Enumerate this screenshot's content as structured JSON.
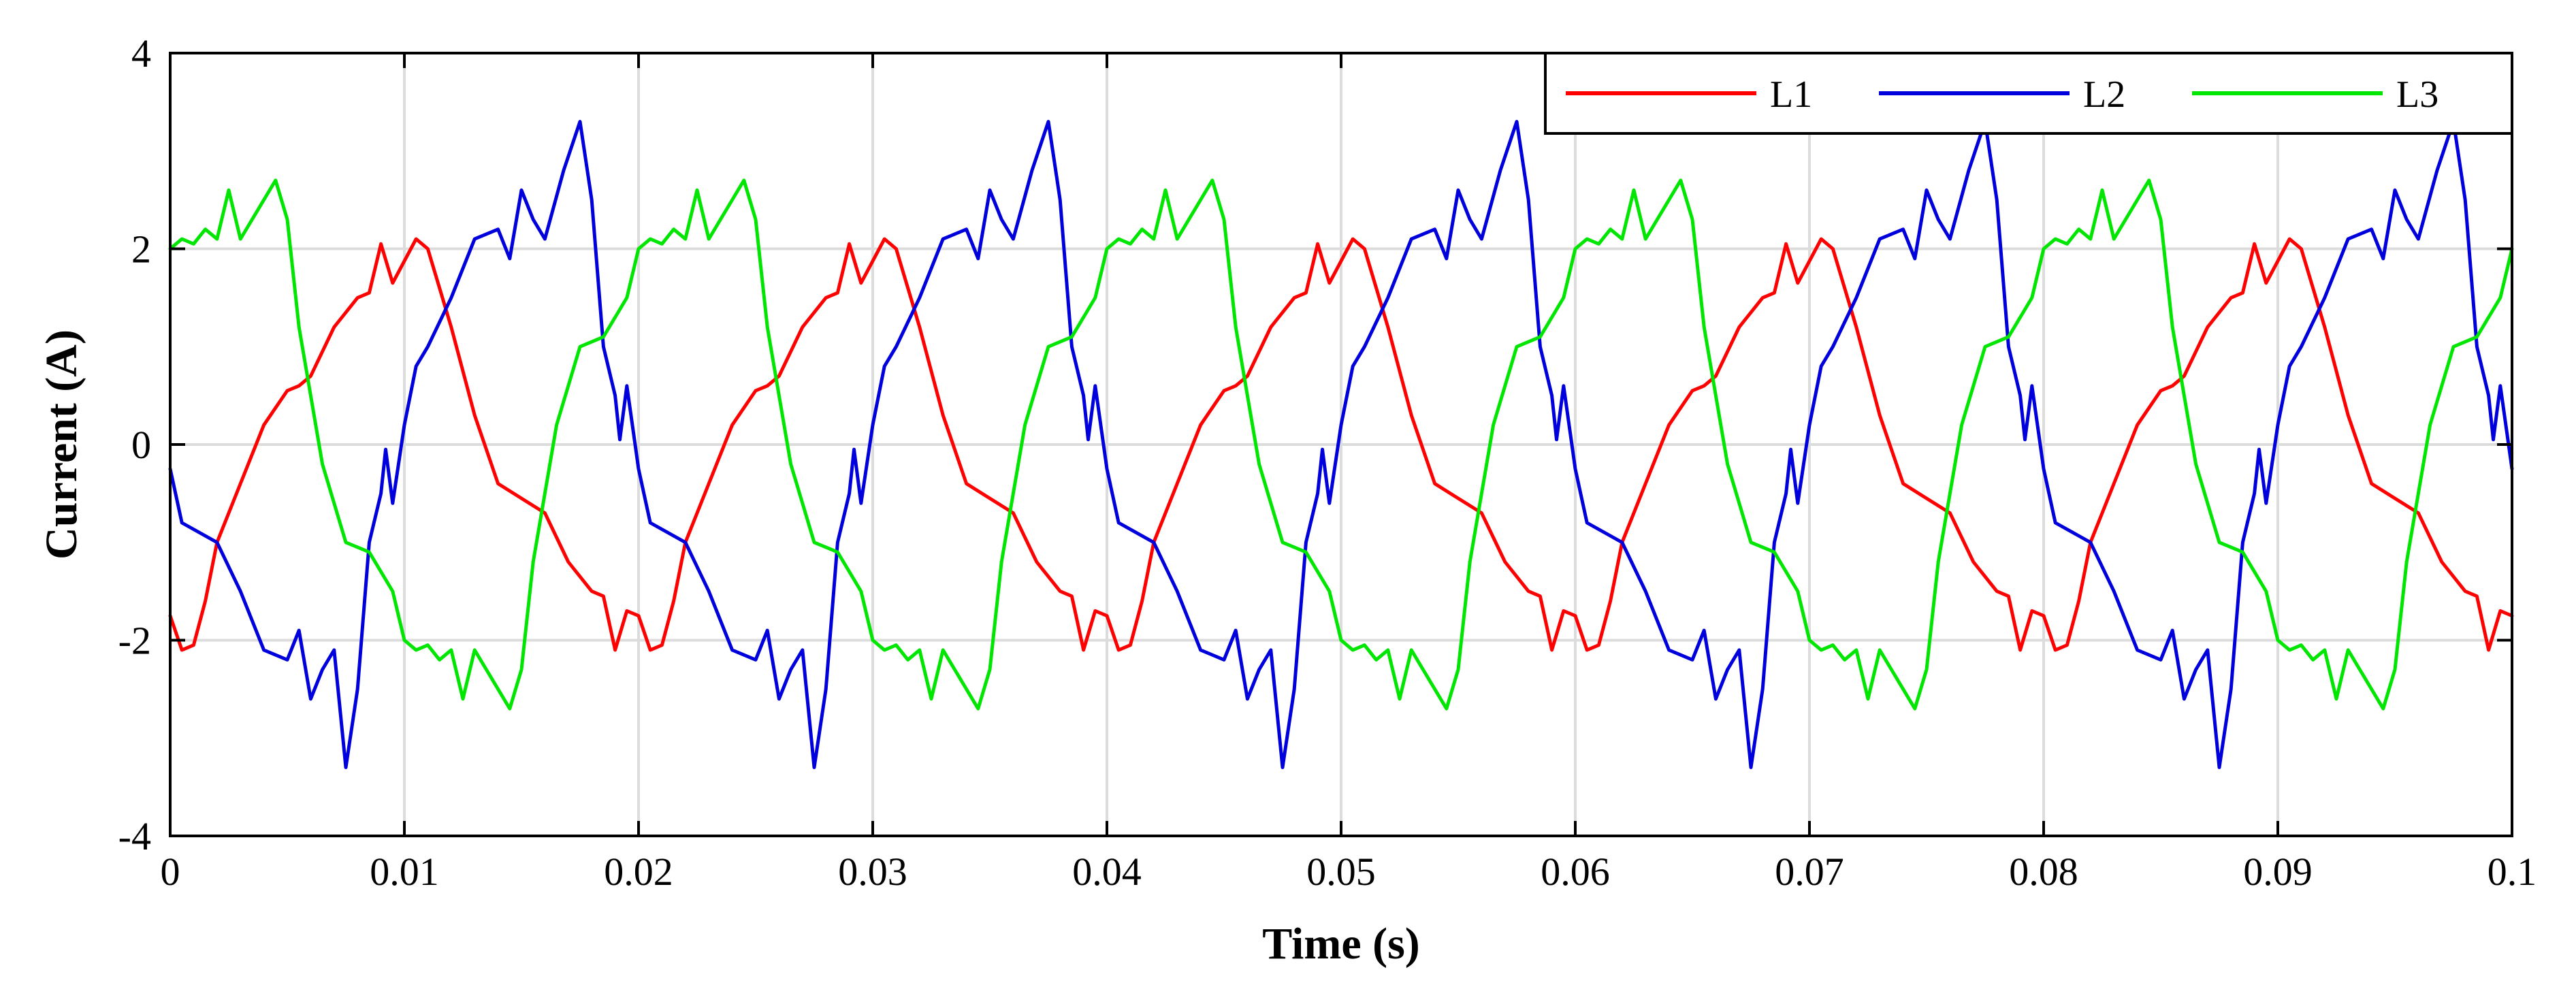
{
  "chart_data": {
    "type": "line",
    "title": "",
    "xlabel": "Time (s)",
    "ylabel": "Current (A)",
    "xlim": [
      0,
      0.1
    ],
    "ylim": [
      -4,
      4
    ],
    "xticks": [
      0,
      0.01,
      0.02,
      0.03,
      0.04,
      0.05,
      0.06,
      0.07,
      0.08,
      0.09,
      0.1
    ],
    "xtick_labels": [
      "0",
      "0.01",
      "0.02",
      "0.03",
      "0.04",
      "0.05",
      "0.06",
      "0.07",
      "0.08",
      "0.09",
      "0.1"
    ],
    "yticks": [
      -4,
      -2,
      0,
      2,
      4
    ],
    "ytick_labels": [
      "-4",
      "-2",
      "0",
      "2",
      "4"
    ],
    "grid": true,
    "legend_position": "top-right",
    "period_s": 0.02,
    "series": [
      {
        "name": "L1",
        "color": "#ff0000",
        "waveform_one_period": [
          [
            0.0,
            -1.75
          ],
          [
            0.0005,
            -2.1
          ],
          [
            0.001,
            -2.05
          ],
          [
            0.0015,
            -1.6
          ],
          [
            0.002,
            -1.0
          ],
          [
            0.003,
            -0.4
          ],
          [
            0.004,
            0.2
          ],
          [
            0.005,
            0.55
          ],
          [
            0.0055,
            0.6
          ],
          [
            0.006,
            0.7
          ],
          [
            0.007,
            1.2
          ],
          [
            0.008,
            1.5
          ],
          [
            0.0085,
            1.55
          ],
          [
            0.009,
            2.05
          ],
          [
            0.0095,
            1.65
          ],
          [
            0.0105,
            2.1
          ],
          [
            0.011,
            2.0
          ],
          [
            0.012,
            1.2
          ],
          [
            0.013,
            0.3
          ],
          [
            0.014,
            -0.4
          ],
          [
            0.015,
            -0.55
          ],
          [
            0.016,
            -0.7
          ],
          [
            0.017,
            -1.2
          ],
          [
            0.018,
            -1.5
          ],
          [
            0.0185,
            -1.55
          ],
          [
            0.019,
            -2.1
          ],
          [
            0.0195,
            -1.7
          ],
          [
            0.02,
            -1.75
          ]
        ]
      },
      {
        "name": "L2",
        "color": "#0000dd",
        "waveform_one_period": [
          [
            0.0,
            -0.25
          ],
          [
            0.0005,
            -0.8
          ],
          [
            0.002,
            -1.0
          ],
          [
            0.003,
            -1.5
          ],
          [
            0.004,
            -2.1
          ],
          [
            0.005,
            -2.2
          ],
          [
            0.0055,
            -1.9
          ],
          [
            0.006,
            -2.6
          ],
          [
            0.0065,
            -2.3
          ],
          [
            0.007,
            -2.1
          ],
          [
            0.0075,
            -3.3
          ],
          [
            0.008,
            -2.5
          ],
          [
            0.0085,
            -1.0
          ],
          [
            0.009,
            -0.5
          ],
          [
            0.0092,
            -0.05
          ],
          [
            0.0095,
            -0.6
          ],
          [
            0.01,
            0.2
          ],
          [
            0.0105,
            0.8
          ],
          [
            0.011,
            1.0
          ],
          [
            0.012,
            1.5
          ],
          [
            0.013,
            2.1
          ],
          [
            0.014,
            2.2
          ],
          [
            0.0145,
            1.9
          ],
          [
            0.015,
            2.6
          ],
          [
            0.0155,
            2.3
          ],
          [
            0.016,
            2.1
          ],
          [
            0.0168,
            2.8
          ],
          [
            0.0175,
            3.3
          ],
          [
            0.018,
            2.5
          ],
          [
            0.0185,
            1.0
          ],
          [
            0.019,
            0.5
          ],
          [
            0.0192,
            0.05
          ],
          [
            0.0195,
            0.6
          ],
          [
            0.02,
            -0.25
          ]
        ]
      },
      {
        "name": "L3",
        "color": "#00e600",
        "waveform_one_period": [
          [
            0.0,
            2.0
          ],
          [
            0.0005,
            2.1
          ],
          [
            0.001,
            2.05
          ],
          [
            0.0015,
            2.2
          ],
          [
            0.002,
            2.1
          ],
          [
            0.0025,
            2.6
          ],
          [
            0.003,
            2.1
          ],
          [
            0.0035,
            2.3
          ],
          [
            0.0045,
            2.7
          ],
          [
            0.005,
            2.3
          ],
          [
            0.0055,
            1.2
          ],
          [
            0.0065,
            -0.2
          ],
          [
            0.0075,
            -1.0
          ],
          [
            0.0085,
            -1.1
          ],
          [
            0.009,
            -1.3
          ],
          [
            0.0095,
            -1.5
          ],
          [
            0.01,
            -2.0
          ],
          [
            0.0105,
            -2.1
          ],
          [
            0.011,
            -2.05
          ],
          [
            0.0115,
            -2.2
          ],
          [
            0.012,
            -2.1
          ],
          [
            0.0125,
            -2.6
          ],
          [
            0.013,
            -2.1
          ],
          [
            0.0135,
            -2.3
          ],
          [
            0.0145,
            -2.7
          ],
          [
            0.015,
            -2.3
          ],
          [
            0.0155,
            -1.2
          ],
          [
            0.0165,
            0.2
          ],
          [
            0.0175,
            1.0
          ],
          [
            0.0185,
            1.1
          ],
          [
            0.019,
            1.3
          ],
          [
            0.0195,
            1.5
          ],
          [
            0.02,
            2.0
          ]
        ]
      }
    ]
  }
}
